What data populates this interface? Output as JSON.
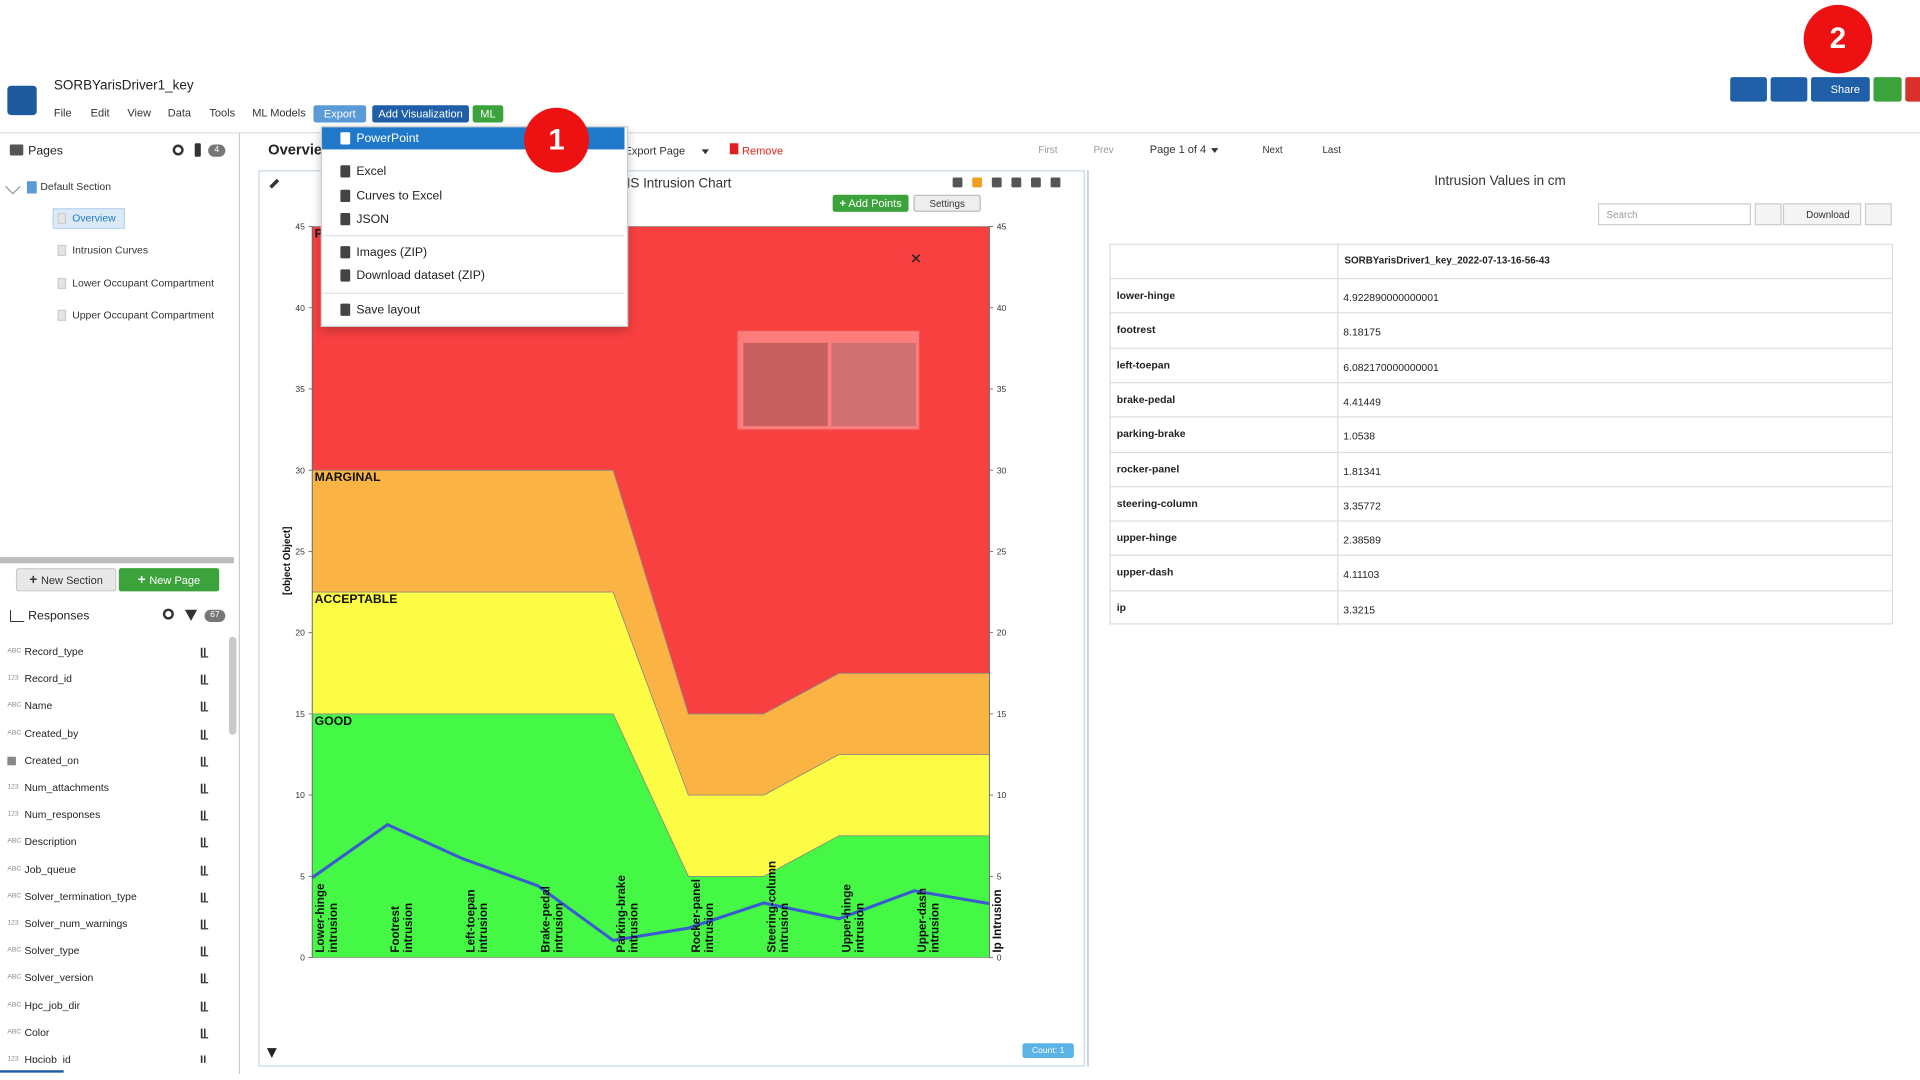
{
  "header": {
    "title": "SORBYarisDriver1_key",
    "menu": [
      "File",
      "Edit",
      "View",
      "Data",
      "Tools",
      "ML Models"
    ],
    "export": "Export",
    "add_visualization": "Add Visualization",
    "ml": "ML",
    "share": "Share"
  },
  "annotations": [
    "1",
    "2"
  ],
  "export_menu": [
    "PowerPoint",
    "Excel",
    "Curves to Excel",
    "JSON",
    "Images (ZIP)",
    "Download dataset (ZIP)",
    "Save layout"
  ],
  "pages_panel": {
    "title": "Pages",
    "count": "4",
    "section": "Default Section",
    "pages": [
      "Overview",
      "Intrusion Curves",
      "Lower Occupant Compartment",
      "Upper Occupant Compartment"
    ],
    "new_section": "New Section",
    "new_page": "New Page"
  },
  "responses_panel": {
    "title": "Responses",
    "count": "67",
    "items": [
      {
        "type": "ABC",
        "name": "Record_type"
      },
      {
        "type": "123",
        "name": "Record_id"
      },
      {
        "type": "ABC",
        "name": "Name"
      },
      {
        "type": "ABC",
        "name": "Created_by"
      },
      {
        "name": "Created_on"
      },
      {
        "type": "123",
        "name": "Num_attachments"
      },
      {
        "type": "123",
        "name": "Num_responses"
      },
      {
        "type": "ABC",
        "name": "Description"
      },
      {
        "type": "ABC",
        "name": "Job_queue"
      },
      {
        "type": "ABC",
        "name": "Solver_termination_type"
      },
      {
        "type": "123",
        "name": "Solver_num_warnings"
      },
      {
        "type": "ABC",
        "name": "Solver_type"
      },
      {
        "type": "ABC",
        "name": "Solver_version"
      },
      {
        "type": "ABC",
        "name": "Hpc_job_dir"
      },
      {
        "type": "ABC",
        "name": "Color"
      },
      {
        "type": "123",
        "name": "Hpcjob_id"
      }
    ]
  },
  "toolbar": {
    "tab": "Overview",
    "export_page": "Export Page",
    "remove": "Remove",
    "first": "First",
    "prev": "Prev",
    "page": "Page 1 of 4",
    "next": "Next",
    "last": "Last"
  },
  "chart_widget": {
    "add_points": "Add Points",
    "settings": "Settings",
    "count": "Count: 1"
  },
  "chart_data": {
    "type": "area",
    "title": "IIHS Intrusion Chart",
    "y_label": "[object Object]",
    "categories": [
      "Lower-hinge intrusion",
      "Footrest intrusion",
      "Left-toepan intrusion",
      "Brake-pedal intrusion",
      "Parking-brake intrusion",
      "Rocker-panel intrusion",
      "Steering-column intrusion",
      "Upper-hinge intrusion",
      "Upper-dash intrusion",
      "Ip Intrusion"
    ],
    "ylim": [
      0,
      45
    ],
    "yticks": [
      0,
      5,
      10,
      15,
      20,
      25,
      30,
      35,
      40,
      45
    ],
    "bands": [
      {
        "name": "GOOD",
        "color": "#46f846",
        "values": [
          15,
          15,
          15,
          15,
          15,
          5,
          5,
          7.5,
          7.5,
          7.5
        ]
      },
      {
        "name": "ACCEPTABLE",
        "color": "#fcfc44",
        "values": [
          7.5,
          7.5,
          7.5,
          7.5,
          7.5,
          5,
          5,
          5,
          5,
          5
        ]
      },
      {
        "name": "MARGINAL",
        "color": "#fbb444",
        "values": [
          7.5,
          7.5,
          7.5,
          7.5,
          7.5,
          5,
          5,
          5,
          5,
          5
        ]
      },
      {
        "name": "POOR",
        "color": "#f84040",
        "values": [
          15,
          15,
          15,
          15,
          15,
          30,
          30,
          27.5,
          27.5,
          27.5
        ]
      }
    ],
    "series": [
      {
        "color": "#3a5ad2",
        "values": [
          4.92289,
          8.18175,
          6.08217,
          4.41449,
          1.0538,
          1.81341,
          3.35772,
          2.38589,
          4.11103,
          3.3215
        ]
      }
    ]
  },
  "table_widget": {
    "title": "Intrusion Values in cm",
    "search": "Search",
    "download": "Download",
    "column": "SORBYarisDriver1_key_2022-07-13-16-56-43",
    "rows": [
      [
        "lower-hinge",
        "4.922890000000001"
      ],
      [
        "footrest",
        "8.18175"
      ],
      [
        "left-toepan",
        "6.082170000000001"
      ],
      [
        "brake-pedal",
        "4.41449"
      ],
      [
        "parking-brake",
        "1.0538"
      ],
      [
        "rocker-panel",
        "1.81341"
      ],
      [
        "steering-column",
        "3.35772"
      ],
      [
        "upper-hinge",
        "2.38589"
      ],
      [
        "upper-dash",
        "4.11103"
      ],
      [
        "ip",
        "3.3215"
      ]
    ]
  }
}
